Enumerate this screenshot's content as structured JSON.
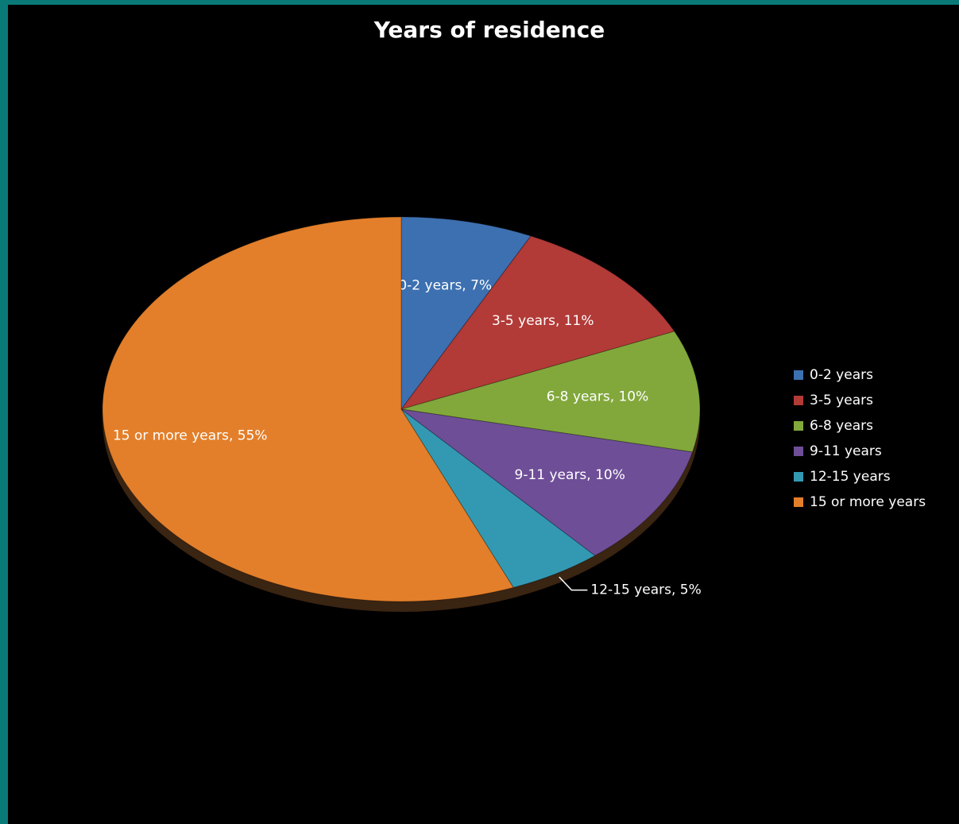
{
  "chart_data": {
    "type": "pie",
    "title": "Years of residence",
    "categories": [
      "0-2 years",
      "3-5 years",
      "6-8 years",
      "9-11 years",
      "12-15 years",
      "15 or more years"
    ],
    "values": [
      7,
      11,
      10,
      10,
      5,
      55
    ],
    "value_labels": [
      "0-2 years, 7%",
      "3-5 years, 11%",
      "6-8 years, 10%",
      "9-11 years, 10%",
      "12-15 years, 5%",
      "15 or more years, 55%"
    ],
    "colors": [
      "#3d70b0",
      "#b23a37",
      "#82a83c",
      "#6f4e98",
      "#3399b3",
      "#e37f2a"
    ],
    "legend": "right"
  }
}
